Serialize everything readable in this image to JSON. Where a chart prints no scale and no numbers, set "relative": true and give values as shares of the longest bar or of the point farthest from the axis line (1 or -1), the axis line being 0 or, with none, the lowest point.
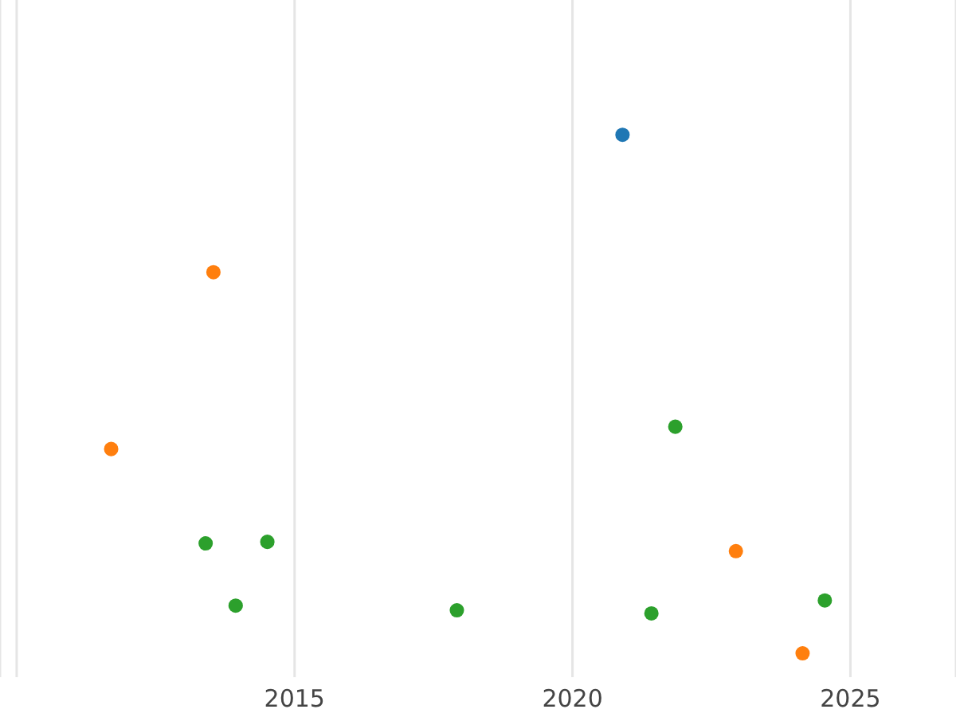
{
  "chart_data": {
    "type": "scatter",
    "relative": true,
    "grid": "x",
    "xlim": [
      2009.7,
      2026.9
    ],
    "xticks": [
      {
        "value": 2010,
        "label": null
      },
      2015,
      2020,
      2025
    ],
    "series": [
      {
        "color": "#1f77b4",
        "x": [
          2020.9
        ],
        "values": [
          1
        ]
      },
      {
        "color": "#ff7f0e",
        "x": [
          2013.54,
          2011.7,
          2022.94,
          2024.14
        ],
        "values": [
          0.735,
          0.394,
          0.197,
          0
        ]
      },
      {
        "color": "#2ca02c",
        "x": [
          2013.4,
          2014.51,
          2013.94,
          2017.92,
          2021.85,
          2021.42,
          2024.54
        ],
        "values": [
          0.212,
          0.215,
          0.092,
          0.083,
          0.437,
          0.077,
          0.102
        ]
      }
    ]
  }
}
